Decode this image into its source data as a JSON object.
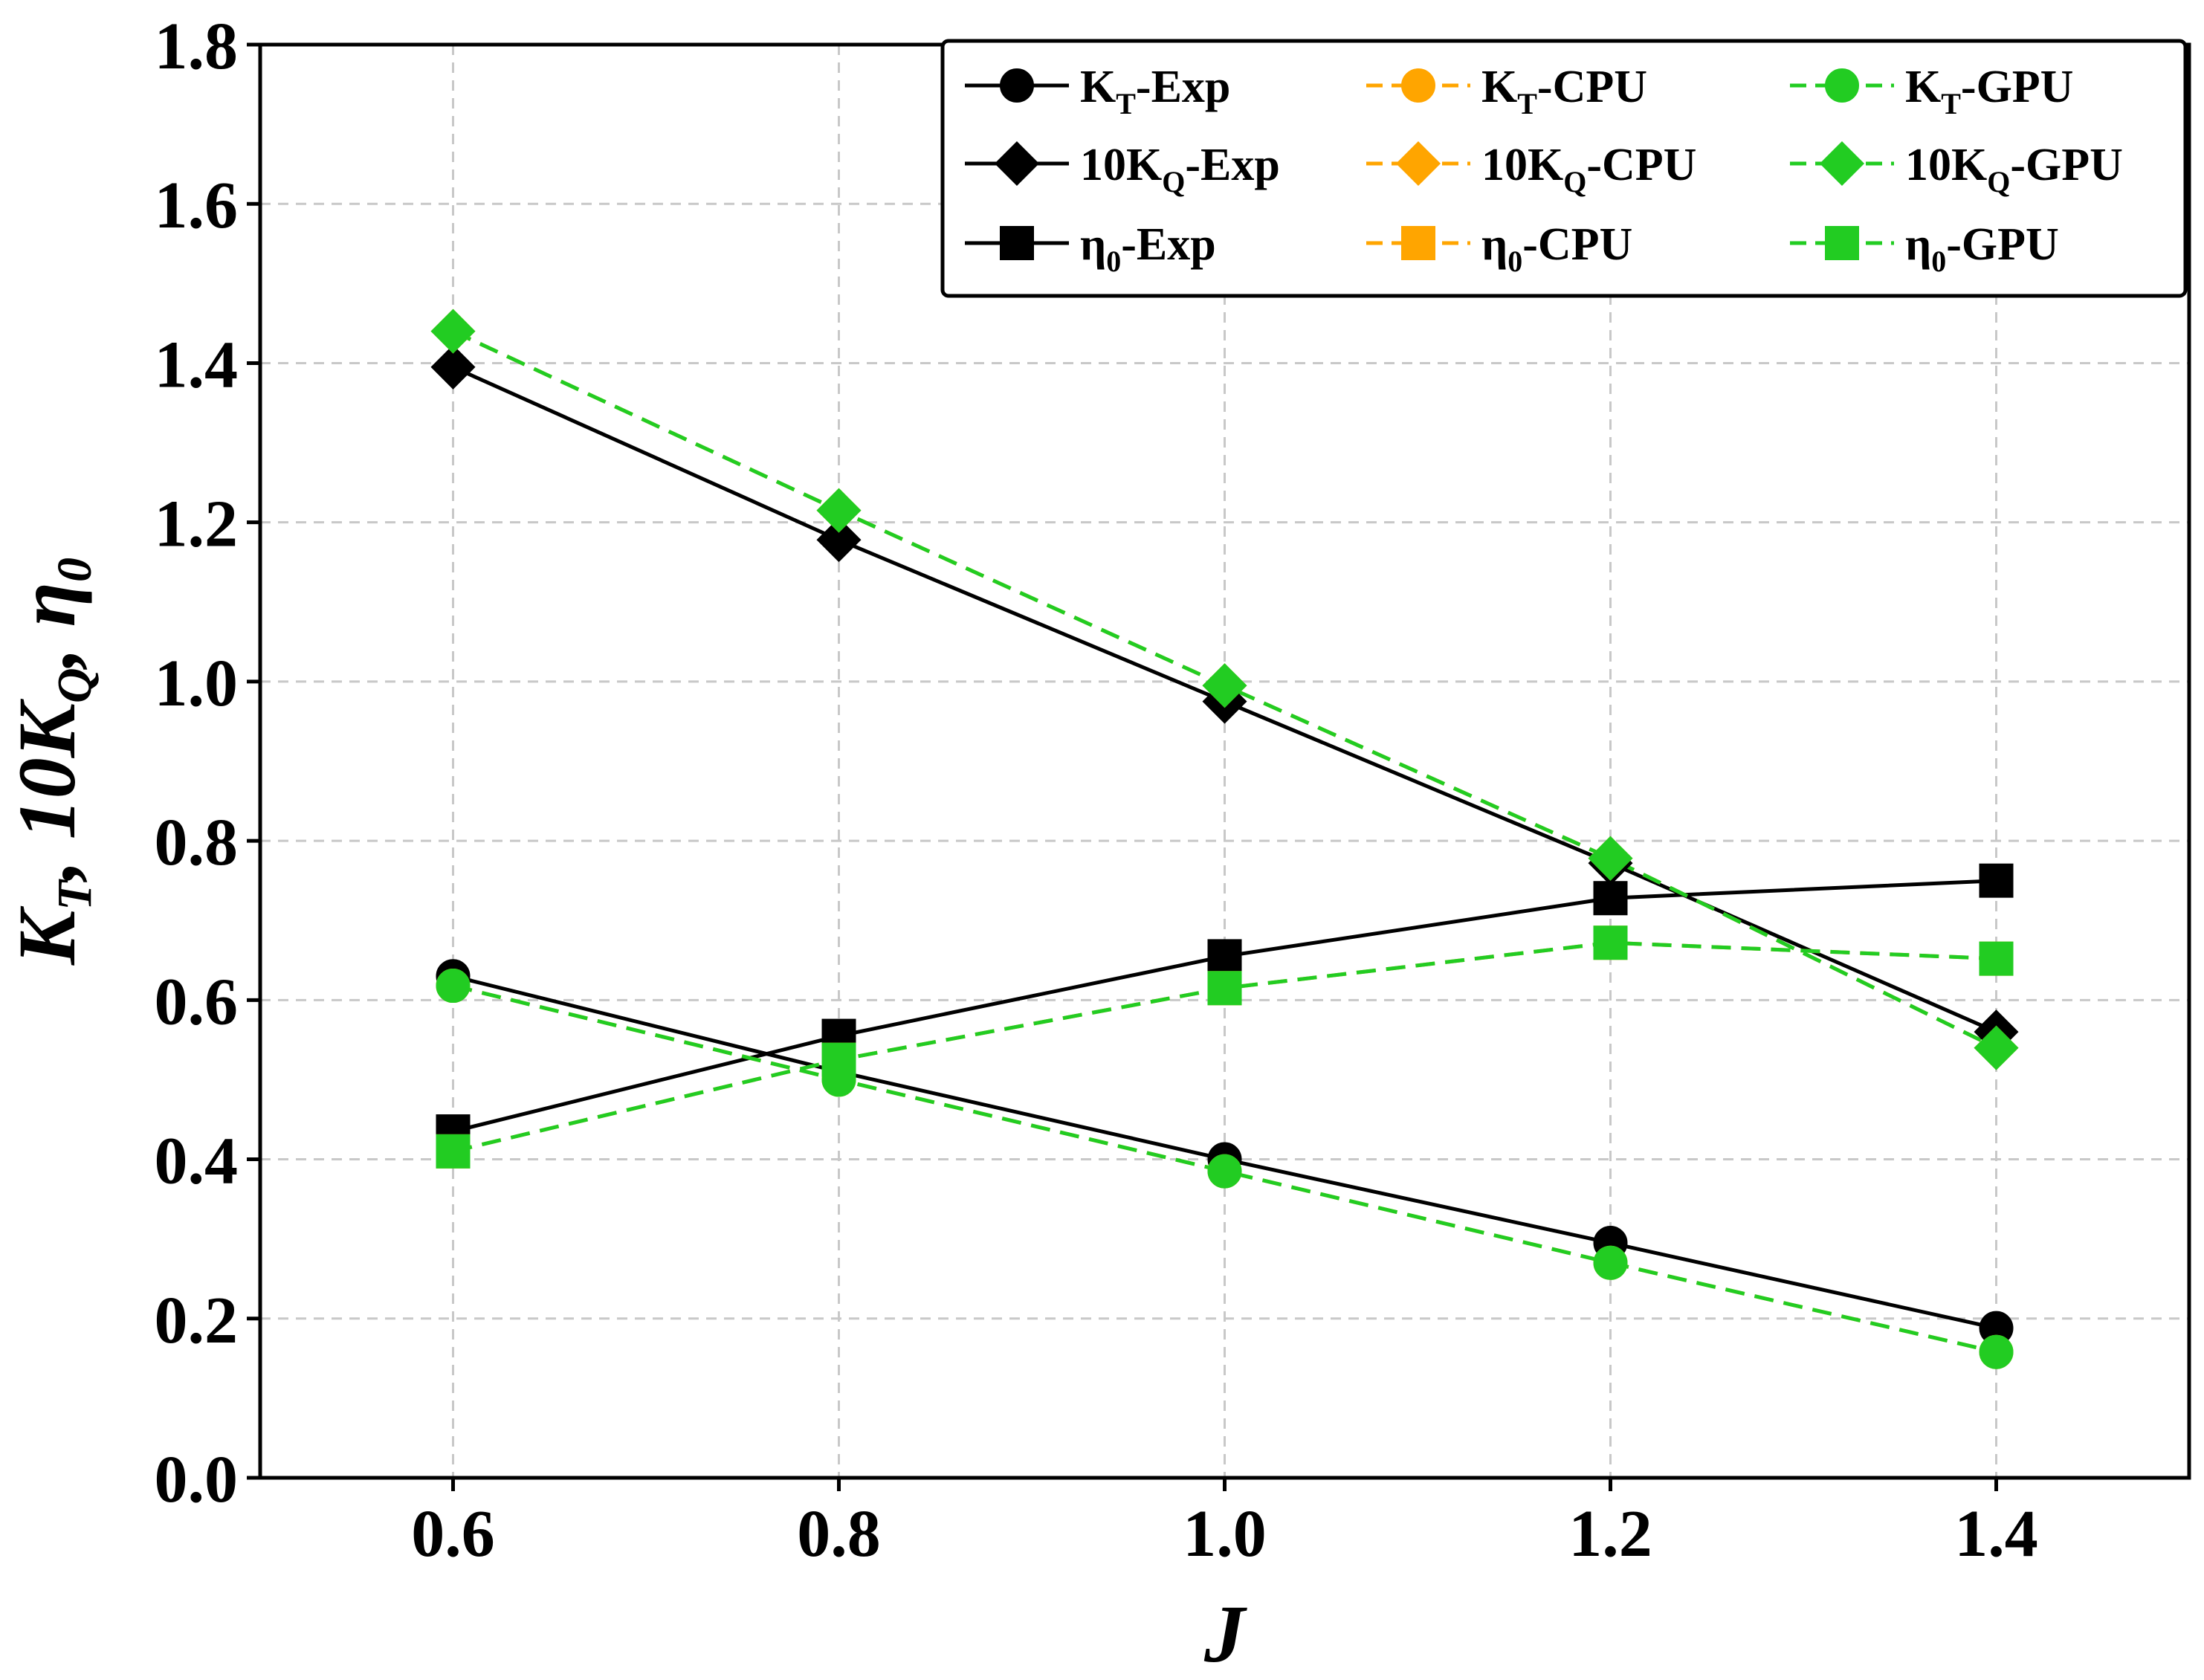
{
  "chart_data": {
    "type": "line",
    "xlabel": "J",
    "ylabel": "K_T, 10K_Q, η_0",
    "xlim": [
      0.5,
      1.5
    ],
    "ylim": [
      0.0,
      1.8
    ],
    "xticks": [
      "0.6",
      "0.8",
      "1.0",
      "1.2",
      "1.4"
    ],
    "yticks": [
      "0.0",
      "0.2",
      "0.4",
      "0.6",
      "0.8",
      "1.0",
      "1.2",
      "1.4",
      "1.6",
      "1.8"
    ],
    "grid": true,
    "legend_position": "top-right",
    "x": [
      0.6,
      0.8,
      1.0,
      1.2,
      1.4
    ],
    "series": [
      {
        "name": "KT-Exp",
        "label_main": "K",
        "label_sub": "T",
        "label_rest": "-Exp",
        "marker": "circle",
        "color": "#000000",
        "dashed": false,
        "values": [
          0.63,
          0.51,
          0.4,
          0.295,
          0.188
        ]
      },
      {
        "name": "10KQ-Exp",
        "label_main": "10K",
        "label_sub": "Q",
        "label_rest": "-Exp",
        "marker": "diamond",
        "color": "#000000",
        "dashed": false,
        "values": [
          1.395,
          1.178,
          0.975,
          0.772,
          0.56
        ]
      },
      {
        "name": "η0-Exp",
        "label_main": "η",
        "label_sub": "0",
        "label_rest": "-Exp",
        "marker": "square",
        "color": "#000000",
        "dashed": false,
        "values": [
          0.435,
          0.555,
          0.655,
          0.728,
          0.75
        ]
      },
      {
        "name": "KT-CPU",
        "label_main": "K",
        "label_sub": "T",
        "label_rest": "-CPU",
        "marker": "circle",
        "color": "#FFA500",
        "dashed": true,
        "values": [
          0.618,
          0.5,
          0.385,
          0.27,
          0.158
        ]
      },
      {
        "name": "10KQ-CPU",
        "label_main": "10K",
        "label_sub": "Q",
        "label_rest": "-CPU",
        "marker": "diamond",
        "color": "#FFA500",
        "dashed": true,
        "values": [
          1.44,
          1.215,
          0.995,
          0.778,
          0.54
        ]
      },
      {
        "name": "η0-CPU",
        "label_main": "η",
        "label_sub": "0",
        "label_rest": "-CPU",
        "marker": "square",
        "color": "#FFA500",
        "dashed": true,
        "values": [
          0.41,
          0.525,
          0.615,
          0.672,
          0.652
        ]
      },
      {
        "name": "KT-GPU",
        "label_main": "K",
        "label_sub": "T",
        "label_rest": "-GPU",
        "marker": "circle",
        "color": "#22CC22",
        "dashed": true,
        "values": [
          0.618,
          0.5,
          0.385,
          0.27,
          0.158
        ]
      },
      {
        "name": "10KQ-GPU",
        "label_main": "10K",
        "label_sub": "Q",
        "label_rest": "-GPU",
        "marker": "diamond",
        "color": "#22CC22",
        "dashed": true,
        "values": [
          1.44,
          1.215,
          0.995,
          0.778,
          0.54
        ]
      },
      {
        "name": "η0-GPU",
        "label_main": "η",
        "label_sub": "0",
        "label_rest": "-GPU",
        "marker": "square",
        "color": "#22CC22",
        "dashed": true,
        "values": [
          0.41,
          0.525,
          0.615,
          0.672,
          0.652
        ]
      }
    ]
  }
}
